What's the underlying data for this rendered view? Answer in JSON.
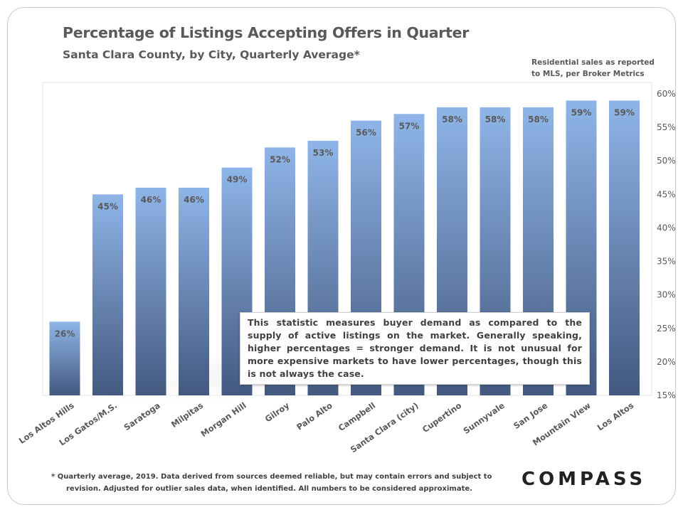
{
  "title": "Percentage of Listings Accepting Offers in Quarter",
  "subtitle": "Santa Clara County, by City, Quarterly Average*",
  "source_note": [
    "Residential sales as reported",
    "to MLS, per Broker Metrics"
  ],
  "annotation": "This statistic measures buyer demand as compared to the supply of active listings on the market. Generally speaking, higher percentages = stronger demand. It is not unusual for more expensive markets to have lower percentages, though this is not always the case.",
  "footnote": [
    "* Quarterly average, 2019. Data derived from sources deemed reliable, but may contain errors and subject to",
    "revision. Adjusted for outlier sales data, when identified. All numbers to be considered approximate."
  ],
  "logo_text": "COMPASS",
  "colors": {
    "bar_top": "#8fb5e8",
    "bar_bottom": "#43597f",
    "label": "#595959",
    "shadow": "#d9d9d9"
  },
  "chart_data": {
    "type": "bar",
    "categories": [
      "Los Altos Hills",
      "Los Gatos/M.S.",
      "Saratoga",
      "Milpitas",
      "Morgan Hill",
      "Gilroy",
      "Palo Alto",
      "Campbell",
      "Santa Clara (city)",
      "Cupertino",
      "Sunnyvale",
      "San Jose",
      "Mountain View",
      "Los Altos"
    ],
    "values": [
      26,
      45,
      46,
      46,
      49,
      52,
      53,
      56,
      57,
      58,
      58,
      58,
      59,
      59
    ],
    "data_labels": [
      "26%",
      "45%",
      "46%",
      "46%",
      "49%",
      "52%",
      "53%",
      "56%",
      "57%",
      "58%",
      "58%",
      "58%",
      "59%",
      "59%"
    ],
    "yticks": [
      15,
      20,
      25,
      30,
      35,
      40,
      45,
      50,
      55,
      60
    ],
    "ytick_labels": [
      "15%",
      "20%",
      "25%",
      "30%",
      "35%",
      "40%",
      "45%",
      "50%",
      "55%",
      "60%"
    ],
    "ylim": [
      15,
      60
    ],
    "y_axis_side": "right",
    "grid": false,
    "xlabel": "",
    "ylabel": ""
  }
}
